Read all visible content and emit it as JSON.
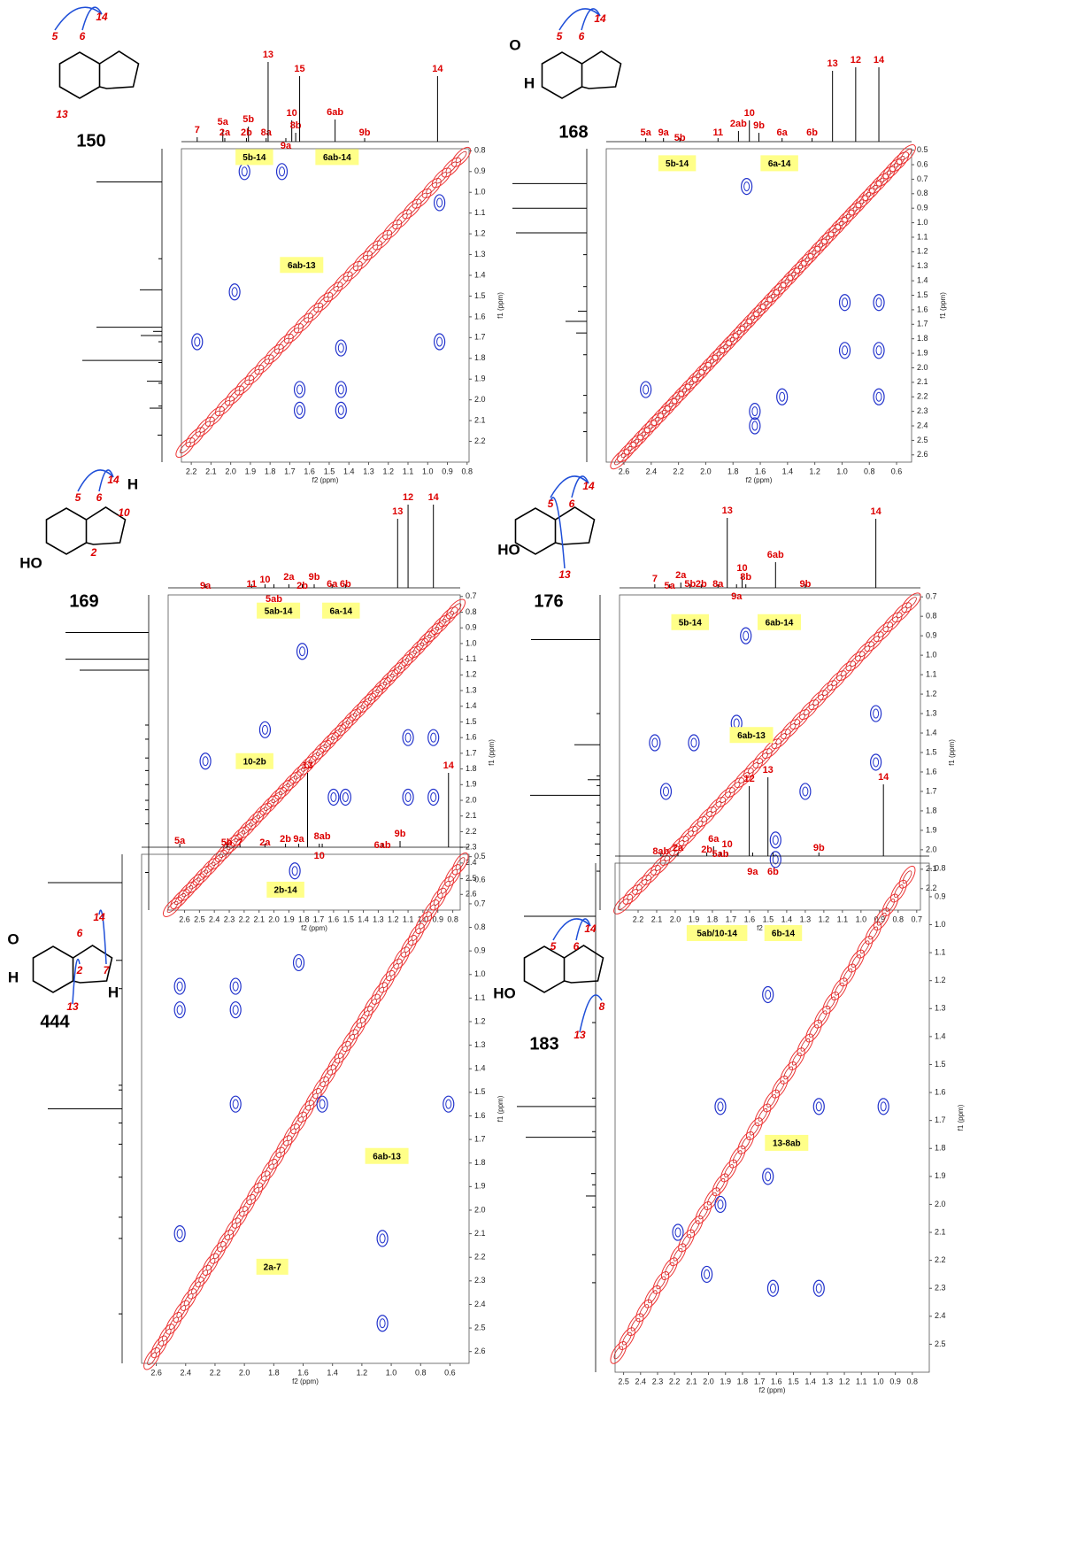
{
  "panels": [
    {
      "compound": "150",
      "x_label": "f2 (ppm)",
      "y_label": "f1 (ppm)",
      "xlim": [
        2.25,
        0.79
      ],
      "ylim": [
        0.79,
        2.3
      ],
      "xticks": [
        2.2,
        2.1,
        {
          "value": 2,
          "label": "2.0"
        },
        1.9,
        1.8,
        1.7,
        1.6,
        1.5,
        1.4,
        1.3,
        1.2,
        1.1,
        {
          "value": 1,
          "label": "1.0"
        },
        0.9,
        0.8
      ],
      "yticks": [
        0.8,
        0.9,
        {
          "value": 1,
          "label": "1.0"
        },
        1.1,
        1.2,
        1.3,
        1.4,
        1.5,
        1.6,
        1.7,
        1.8,
        1.9,
        {
          "value": 2,
          "label": "2.0"
        },
        2.1,
        2.2
      ],
      "peaks": [
        {
          "label": "7",
          "x": 2.17
        },
        {
          "label": "5a",
          "x": 2.04
        },
        {
          "label": "2a",
          "x": 2.03
        },
        {
          "label": "5b",
          "x": 1.91
        },
        {
          "label": "2b",
          "x": 1.92
        },
        {
          "label": "8a",
          "x": 1.82
        },
        {
          "label": "13",
          "x": 1.81
        },
        {
          "label": "10",
          "x": 1.69
        },
        {
          "label": "8b",
          "x": 1.67
        },
        {
          "label": "9a",
          "x": 1.72
        },
        {
          "label": "15",
          "x": 1.65
        },
        {
          "label": "6ab",
          "x": 1.47
        },
        {
          "label": "9b",
          "x": 1.32
        },
        {
          "label": "14",
          "x": 0.95
        }
      ],
      "correlations": [
        {
          "label": "5b-14",
          "x": 1.88,
          "y": 0.83
        },
        {
          "label": "6ab-14",
          "x": 1.46,
          "y": 0.83
        },
        {
          "label": "6ab-13",
          "x": 1.64,
          "y": 1.35
        }
      ],
      "cross_peaks": [
        {
          "x": 1.44,
          "y": 1.95
        },
        {
          "x": 1.44,
          "y": 2.05
        },
        {
          "x": 1.65,
          "y": 1.95
        },
        {
          "x": 1.65,
          "y": 2.05
        },
        {
          "x": 0.94,
          "y": 1.72
        },
        {
          "x": 0.94,
          "y": 1.05
        },
        {
          "x": 1.93,
          "y": 0.9
        },
        {
          "x": 1.74,
          "y": 0.9
        },
        {
          "x": 2.17,
          "y": 1.72
        },
        {
          "x": 1.98,
          "y": 1.48
        },
        {
          "x": 1.44,
          "y": 1.75
        }
      ],
      "structure_labels": [
        "5",
        "6",
        "14",
        "13"
      ]
    },
    {
      "compound": "168",
      "x_label": "f2 (ppm)",
      "y_label": "f1 (ppm)",
      "xlim": [
        2.73,
        0.49
      ],
      "ylim": [
        0.49,
        2.65
      ],
      "xticks": [
        2.6,
        2.4,
        2.2,
        {
          "value": 2,
          "label": "2.0"
        },
        1.8,
        1.6,
        1.4,
        1.2,
        {
          "value": 1,
          "label": "1.0"
        },
        0.8,
        0.6
      ],
      "yticks": [
        0.5,
        0.6,
        0.7,
        0.8,
        0.9,
        {
          "value": 1,
          "label": "1.0"
        },
        1.1,
        1.2,
        1.3,
        1.4,
        1.5,
        1.6,
        1.7,
        1.8,
        1.9,
        {
          "value": 2,
          "label": "2.0"
        },
        2.1,
        2.2,
        2.3,
        2.4,
        2.5,
        2.6
      ],
      "peaks": [
        {
          "label": "5a",
          "x": 2.44
        },
        {
          "label": "9a",
          "x": 2.31
        },
        {
          "label": "5b",
          "x": 2.19
        },
        {
          "label": "11",
          "x": 1.91
        },
        {
          "label": "2ab",
          "x": 1.76
        },
        {
          "label": "10",
          "x": 1.68
        },
        {
          "label": "9b",
          "x": 1.61
        },
        {
          "label": "6a",
          "x": 1.44
        },
        {
          "label": "6b",
          "x": 1.22
        },
        {
          "label": "13",
          "x": 1.07
        },
        {
          "label": "12",
          "x": 0.9
        },
        {
          "label": "14",
          "x": 0.73
        }
      ],
      "correlations": [
        {
          "label": "5b-14",
          "x": 2.21,
          "y": 0.59
        },
        {
          "label": "6a-14",
          "x": 1.46,
          "y": 0.59
        }
      ],
      "cross_peaks": [
        {
          "x": 0.98,
          "y": 1.88
        },
        {
          "x": 0.73,
          "y": 1.88
        },
        {
          "x": 0.73,
          "y": 1.55
        },
        {
          "x": 0.98,
          "y": 1.55
        },
        {
          "x": 1.64,
          "y": 2.3
        },
        {
          "x": 1.64,
          "y": 2.4
        },
        {
          "x": 2.44,
          "y": 2.15
        },
        {
          "x": 1.7,
          "y": 0.75
        },
        {
          "x": 1.44,
          "y": 2.2
        },
        {
          "x": 0.73,
          "y": 2.2
        }
      ],
      "structure_labels": [
        "5",
        "6",
        "14",
        "O",
        "H"
      ]
    },
    {
      "compound": "169",
      "x_label": "f2 (ppm)",
      "y_label": "f1 (ppm)",
      "xlim": [
        2.71,
        0.75
      ],
      "ylim": [
        0.69,
        2.7
      ],
      "xticks": [
        2.6,
        2.5,
        2.4,
        2.3,
        2.2,
        2.1,
        {
          "value": 2,
          "label": "2.0"
        },
        1.9,
        1.8,
        1.7,
        1.6,
        1.5,
        1.4,
        1.3,
        1.2,
        1.1,
        {
          "value": 1,
          "label": "1.0"
        },
        0.9,
        0.8
      ],
      "yticks": [
        0.7,
        0.8,
        0.9,
        {
          "value": 1,
          "label": "1.0"
        },
        1.1,
        1.2,
        1.3,
        1.4,
        1.5,
        1.6,
        1.7,
        1.8,
        1.9,
        {
          "value": 2,
          "label": "2.0"
        },
        2.1,
        2.2,
        2.3,
        2.4,
        2.5,
        2.6
      ],
      "peaks": [
        {
          "label": "9a",
          "x": 2.46
        },
        {
          "label": "11",
          "x": 2.15
        },
        {
          "label": "10",
          "x": 2.06
        },
        {
          "label": "5ab",
          "x": 2.0
        },
        {
          "label": "2a",
          "x": 1.9
        },
        {
          "label": "2b",
          "x": 1.81
        },
        {
          "label": "9b",
          "x": 1.73
        },
        {
          "label": "6a",
          "x": 1.61
        },
        {
          "label": "6b",
          "x": 1.52
        },
        {
          "label": "13",
          "x": 1.17
        },
        {
          "label": "12",
          "x": 1.1
        },
        {
          "label": "14",
          "x": 0.93
        }
      ],
      "correlations": [
        {
          "label": "5ab-14",
          "x": 1.97,
          "y": 0.79
        },
        {
          "label": "6a-14",
          "x": 1.55,
          "y": 0.79
        },
        {
          "label": "10-2b",
          "x": 2.13,
          "y": 1.75
        }
      ],
      "cross_peaks": [
        {
          "x": 1.6,
          "y": 1.98
        },
        {
          "x": 1.52,
          "y": 1.98
        },
        {
          "x": 1.1,
          "y": 1.98
        },
        {
          "x": 0.93,
          "y": 1.98
        },
        {
          "x": 0.93,
          "y": 1.6
        },
        {
          "x": 1.1,
          "y": 1.6
        },
        {
          "x": 2.06,
          "y": 1.55
        },
        {
          "x": 2.46,
          "y": 1.75
        },
        {
          "x": 1.86,
          "y": 2.45
        },
        {
          "x": 1.81,
          "y": 1.05
        }
      ],
      "structure_labels": [
        "5",
        "6",
        "14",
        "H",
        "10",
        "HO",
        "2"
      ]
    },
    {
      "compound": "176",
      "x_label": "f2 (ppm)",
      "y_label": "f1 (ppm)",
      "xlim": [
        2.3,
        0.68
      ],
      "ylim": [
        0.69,
        2.31
      ],
      "xticks": [
        2.2,
        2.1,
        {
          "value": 2,
          "label": "2.0"
        },
        1.9,
        1.8,
        1.7,
        1.6,
        1.5,
        1.4,
        1.3,
        1.2,
        1.1,
        {
          "value": 1,
          "label": "1.0"
        },
        0.9,
        0.8,
        0.7
      ],
      "yticks": [
        0.7,
        0.8,
        0.9,
        {
          "value": 1,
          "label": "1.0"
        },
        1.1,
        1.2,
        1.3,
        1.4,
        1.5,
        1.6,
        1.7,
        1.8,
        1.9,
        {
          "value": 2,
          "label": "2.0"
        },
        2.1,
        2.2
      ],
      "peaks": [
        {
          "label": "7",
          "x": 2.11
        },
        {
          "label": "5a",
          "x": 2.03
        },
        {
          "label": "2a",
          "x": 1.97
        },
        {
          "label": "5b",
          "x": 1.92
        },
        {
          "label": "2b",
          "x": 1.86
        },
        {
          "label": "8a",
          "x": 1.77
        },
        {
          "label": "13",
          "x": 1.72
        },
        {
          "label": "10",
          "x": 1.64
        },
        {
          "label": "8b",
          "x": 1.62
        },
        {
          "label": "9a",
          "x": 1.67
        },
        {
          "label": "6ab",
          "x": 1.46
        },
        {
          "label": "9b",
          "x": 1.3
        },
        {
          "label": "14",
          "x": 0.92
        }
      ],
      "correlations": [
        {
          "label": "5b-14",
          "x": 1.92,
          "y": 0.83
        },
        {
          "label": "6ab-14",
          "x": 1.44,
          "y": 0.83
        },
        {
          "label": "6ab-13",
          "x": 1.59,
          "y": 1.41
        }
      ],
      "cross_peaks": [
        {
          "x": 1.46,
          "y": 1.95
        },
        {
          "x": 1.46,
          "y": 2.05
        },
        {
          "x": 0.92,
          "y": 1.55
        },
        {
          "x": 0.92,
          "y": 1.3
        },
        {
          "x": 1.3,
          "y": 1.7
        },
        {
          "x": 2.11,
          "y": 1.45
        },
        {
          "x": 1.9,
          "y": 1.45
        },
        {
          "x": 1.67,
          "y": 1.35
        },
        {
          "x": 2.05,
          "y": 1.7
        },
        {
          "x": 1.62,
          "y": 0.9
        }
      ],
      "structure_labels": [
        "5",
        "6",
        "14",
        "HO",
        "13"
      ]
    },
    {
      "compound": "444",
      "x_label": "f2 (ppm)",
      "y_label": "f1 (ppm)",
      "xlim": [
        2.7,
        0.47
      ],
      "ylim": [
        0.49,
        2.65
      ],
      "xticks": [
        2.6,
        2.4,
        2.2,
        {
          "value": 2,
          "label": "2.0"
        },
        1.8,
        1.6,
        1.4,
        1.2,
        {
          "value": 1,
          "label": "1.0"
        },
        0.8,
        0.6
      ],
      "yticks": [
        0.5,
        0.6,
        0.7,
        0.8,
        0.9,
        {
          "value": 1,
          "label": "1.0"
        },
        1.1,
        1.2,
        1.3,
        1.4,
        1.5,
        1.6,
        1.7,
        1.8,
        1.9,
        {
          "value": 2,
          "label": "2.0"
        },
        2.1,
        2.2,
        2.3,
        2.4,
        2.5,
        2.6
      ],
      "peaks": [
        {
          "label": "5a",
          "x": 2.44
        },
        {
          "label": "5b",
          "x": 2.12
        },
        {
          "label": "7",
          "x": 2.03
        },
        {
          "label": "2a",
          "x": 1.86
        },
        {
          "label": "2b",
          "x": 1.72
        },
        {
          "label": "9a",
          "x": 1.63
        },
        {
          "label": "13",
          "x": 1.57
        },
        {
          "label": "8ab",
          "x": 1.47
        },
        {
          "label": "10",
          "x": 1.49
        },
        {
          "label": "6ab",
          "x": 1.06
        },
        {
          "label": "9b",
          "x": 0.94
        },
        {
          "label": "14",
          "x": 0.61
        }
      ],
      "correlations": [
        {
          "label": "2b-14",
          "x": 1.72,
          "y": 0.64
        },
        {
          "label": "6ab-13",
          "x": 1.03,
          "y": 1.77
        },
        {
          "label": "2a-7",
          "x": 1.81,
          "y": 2.24
        }
      ],
      "cross_peaks": [
        {
          "x": 2.44,
          "y": 1.05
        },
        {
          "x": 2.44,
          "y": 1.15
        },
        {
          "x": 2.06,
          "y": 1.05
        },
        {
          "x": 2.06,
          "y": 1.15
        },
        {
          "x": 2.06,
          "y": 1.55
        },
        {
          "x": 1.47,
          "y": 1.55
        },
        {
          "x": 1.06,
          "y": 2.12
        },
        {
          "x": 1.06,
          "y": 2.48
        },
        {
          "x": 0.61,
          "y": 1.55
        },
        {
          "x": 1.63,
          "y": 0.95
        },
        {
          "x": 2.44,
          "y": 2.1
        }
      ],
      "structure_labels": [
        "O",
        "H",
        "6",
        "14",
        "2",
        "7",
        "13",
        "H"
      ]
    },
    {
      "compound": "183",
      "x_label": "f2 (ppm)",
      "y_label": "f1 (ppm)",
      "xlim": [
        2.55,
        0.7
      ],
      "ylim": [
        0.78,
        2.6
      ],
      "xticks": [
        2.5,
        2.4,
        2.3,
        2.2,
        2.1,
        {
          "value": 2,
          "label": "2.0"
        },
        1.9,
        1.8,
        1.7,
        1.6,
        1.5,
        1.4,
        1.3,
        1.2,
        1.1,
        {
          "value": 1,
          "label": "1.0"
        },
        0.9,
        0.8
      ],
      "yticks": [
        0.8,
        0.9,
        {
          "value": 1,
          "label": "1.0"
        },
        1.1,
        1.2,
        1.3,
        1.4,
        1.5,
        1.6,
        1.7,
        1.8,
        1.9,
        {
          "value": 2,
          "label": "2.0"
        },
        2.1,
        2.2,
        2.3,
        2.4,
        2.5
      ],
      "peaks": [
        {
          "label": "8ab",
          "x": 2.28
        },
        {
          "label": "2a",
          "x": 2.18
        },
        {
          "label": "2b",
          "x": 2.01
        },
        {
          "label": "6a",
          "x": 1.97
        },
        {
          "label": "10",
          "x": 1.89
        },
        {
          "label": "5ab",
          "x": 1.93
        },
        {
          "label": "12",
          "x": 1.76
        },
        {
          "label": "9a",
          "x": 1.74
        },
        {
          "label": "13",
          "x": 1.65
        },
        {
          "label": "6b",
          "x": 1.62
        },
        {
          "label": "9b",
          "x": 1.35
        },
        {
          "label": "14",
          "x": 0.97
        }
      ],
      "correlations": [
        {
          "label": "5ab/10-14",
          "x": 1.95,
          "y": 1.03
        },
        {
          "label": "6b-14",
          "x": 1.56,
          "y": 1.03
        },
        {
          "label": "13-8ab",
          "x": 1.54,
          "y": 1.78
        }
      ],
      "cross_peaks": [
        {
          "x": 1.65,
          "y": 1.25
        },
        {
          "x": 1.65,
          "y": 1.9
        },
        {
          "x": 1.93,
          "y": 1.65
        },
        {
          "x": 1.93,
          "y": 2.0
        },
        {
          "x": 1.35,
          "y": 1.65
        },
        {
          "x": 0.97,
          "y": 1.65
        },
        {
          "x": 1.62,
          "y": 2.3
        },
        {
          "x": 2.18,
          "y": 2.1
        },
        {
          "x": 2.01,
          "y": 2.25
        },
        {
          "x": 1.35,
          "y": 2.3
        }
      ],
      "structure_labels": [
        "HO",
        "5",
        "6",
        "14",
        "8",
        "13"
      ]
    }
  ]
}
